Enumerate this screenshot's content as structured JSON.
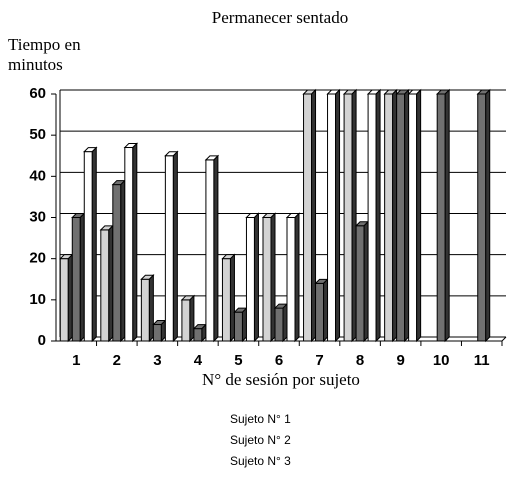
{
  "chart_data": {
    "type": "bar",
    "title": "Permanecer sentado",
    "y_label_lines": [
      "Tiempo en",
      "minutos"
    ],
    "x_label": "N° de sesión por sujeto",
    "categories": [
      "1",
      "2",
      "3",
      "4",
      "5",
      "6",
      "7",
      "8",
      "9",
      "10",
      "11"
    ],
    "series": [
      {
        "name": "Sujeto N° 1",
        "color": "#d3d3d3",
        "values": [
          20,
          27,
          15,
          10,
          20,
          30,
          60,
          60,
          60,
          null,
          null
        ]
      },
      {
        "name": "Sujeto N° 2",
        "color": "#707070",
        "values": [
          30,
          38,
          4,
          3,
          7,
          8,
          14,
          28,
          60,
          60,
          60
        ]
      },
      {
        "name": "Sujeto N° 3",
        "color": "#ffffff",
        "values": [
          46,
          47,
          45,
          44,
          30,
          30,
          60,
          60,
          60,
          null,
          null
        ]
      }
    ],
    "ylim": [
      0,
      60
    ],
    "yticks": [
      0,
      10,
      20,
      30,
      40,
      50,
      60
    ],
    "grid": true
  }
}
